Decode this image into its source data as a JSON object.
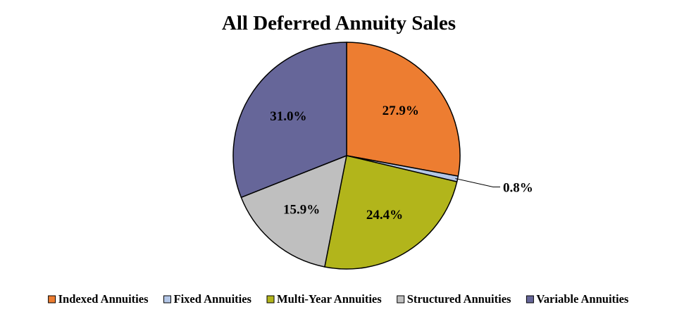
{
  "chart_data": {
    "type": "pie",
    "title": "All Deferred Annuity Sales",
    "slices": [
      {
        "label": "Indexed Annuities",
        "value": 27.9,
        "display": "27.9%",
        "color": "#ED7D31"
      },
      {
        "label": "Fixed Annuities",
        "value": 0.8,
        "display": "0.8%",
        "color": "#B4C7E7"
      },
      {
        "label": "Multi-Year Annuities",
        "value": 24.4,
        "display": "24.4%",
        "color": "#B2B51B"
      },
      {
        "label": "Structured Annuities",
        "value": 15.9,
        "display": "15.9%",
        "color": "#BFBFBF"
      },
      {
        "label": "Variable Annuities",
        "value": 31.0,
        "display": "31.0%",
        "color": "#666699"
      }
    ],
    "start": "12 o'clock",
    "direction": "clockwise",
    "legend_position": "bottom",
    "outline_color": "#000000"
  }
}
